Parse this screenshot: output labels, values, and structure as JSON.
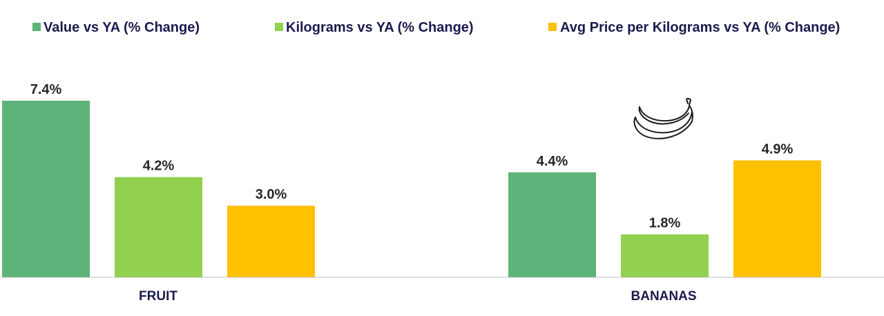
{
  "chart_data": {
    "type": "bar",
    "categories": [
      "FRUIT",
      "BANANAS"
    ],
    "series": [
      {
        "name": "Value vs YA (% Change)",
        "values": [
          7.4,
          4.4
        ],
        "color": "#5db37a"
      },
      {
        "name": "Kilograms vs YA (% Change)",
        "values": [
          4.2,
          1.8
        ],
        "color": "#92d050"
      },
      {
        "name": "Avg Price per Kilograms vs YA (% Change)",
        "values": [
          3.0,
          4.9
        ],
        "color": "#ffc000"
      }
    ],
    "value_labels": [
      [
        "7.4%",
        "4.4%"
      ],
      [
        "4.2%",
        "1.8%"
      ],
      [
        "3.0%",
        "4.9%"
      ]
    ],
    "ylim": [
      0,
      7.4
    ],
    "grid": false,
    "legend_position": "top",
    "title": "",
    "xlabel": "",
    "ylabel": ""
  },
  "icons": {
    "bananas": "bananas-icon"
  },
  "colors": {
    "axis": "#bfbfbf",
    "text_dark": "#1a1a4e"
  }
}
